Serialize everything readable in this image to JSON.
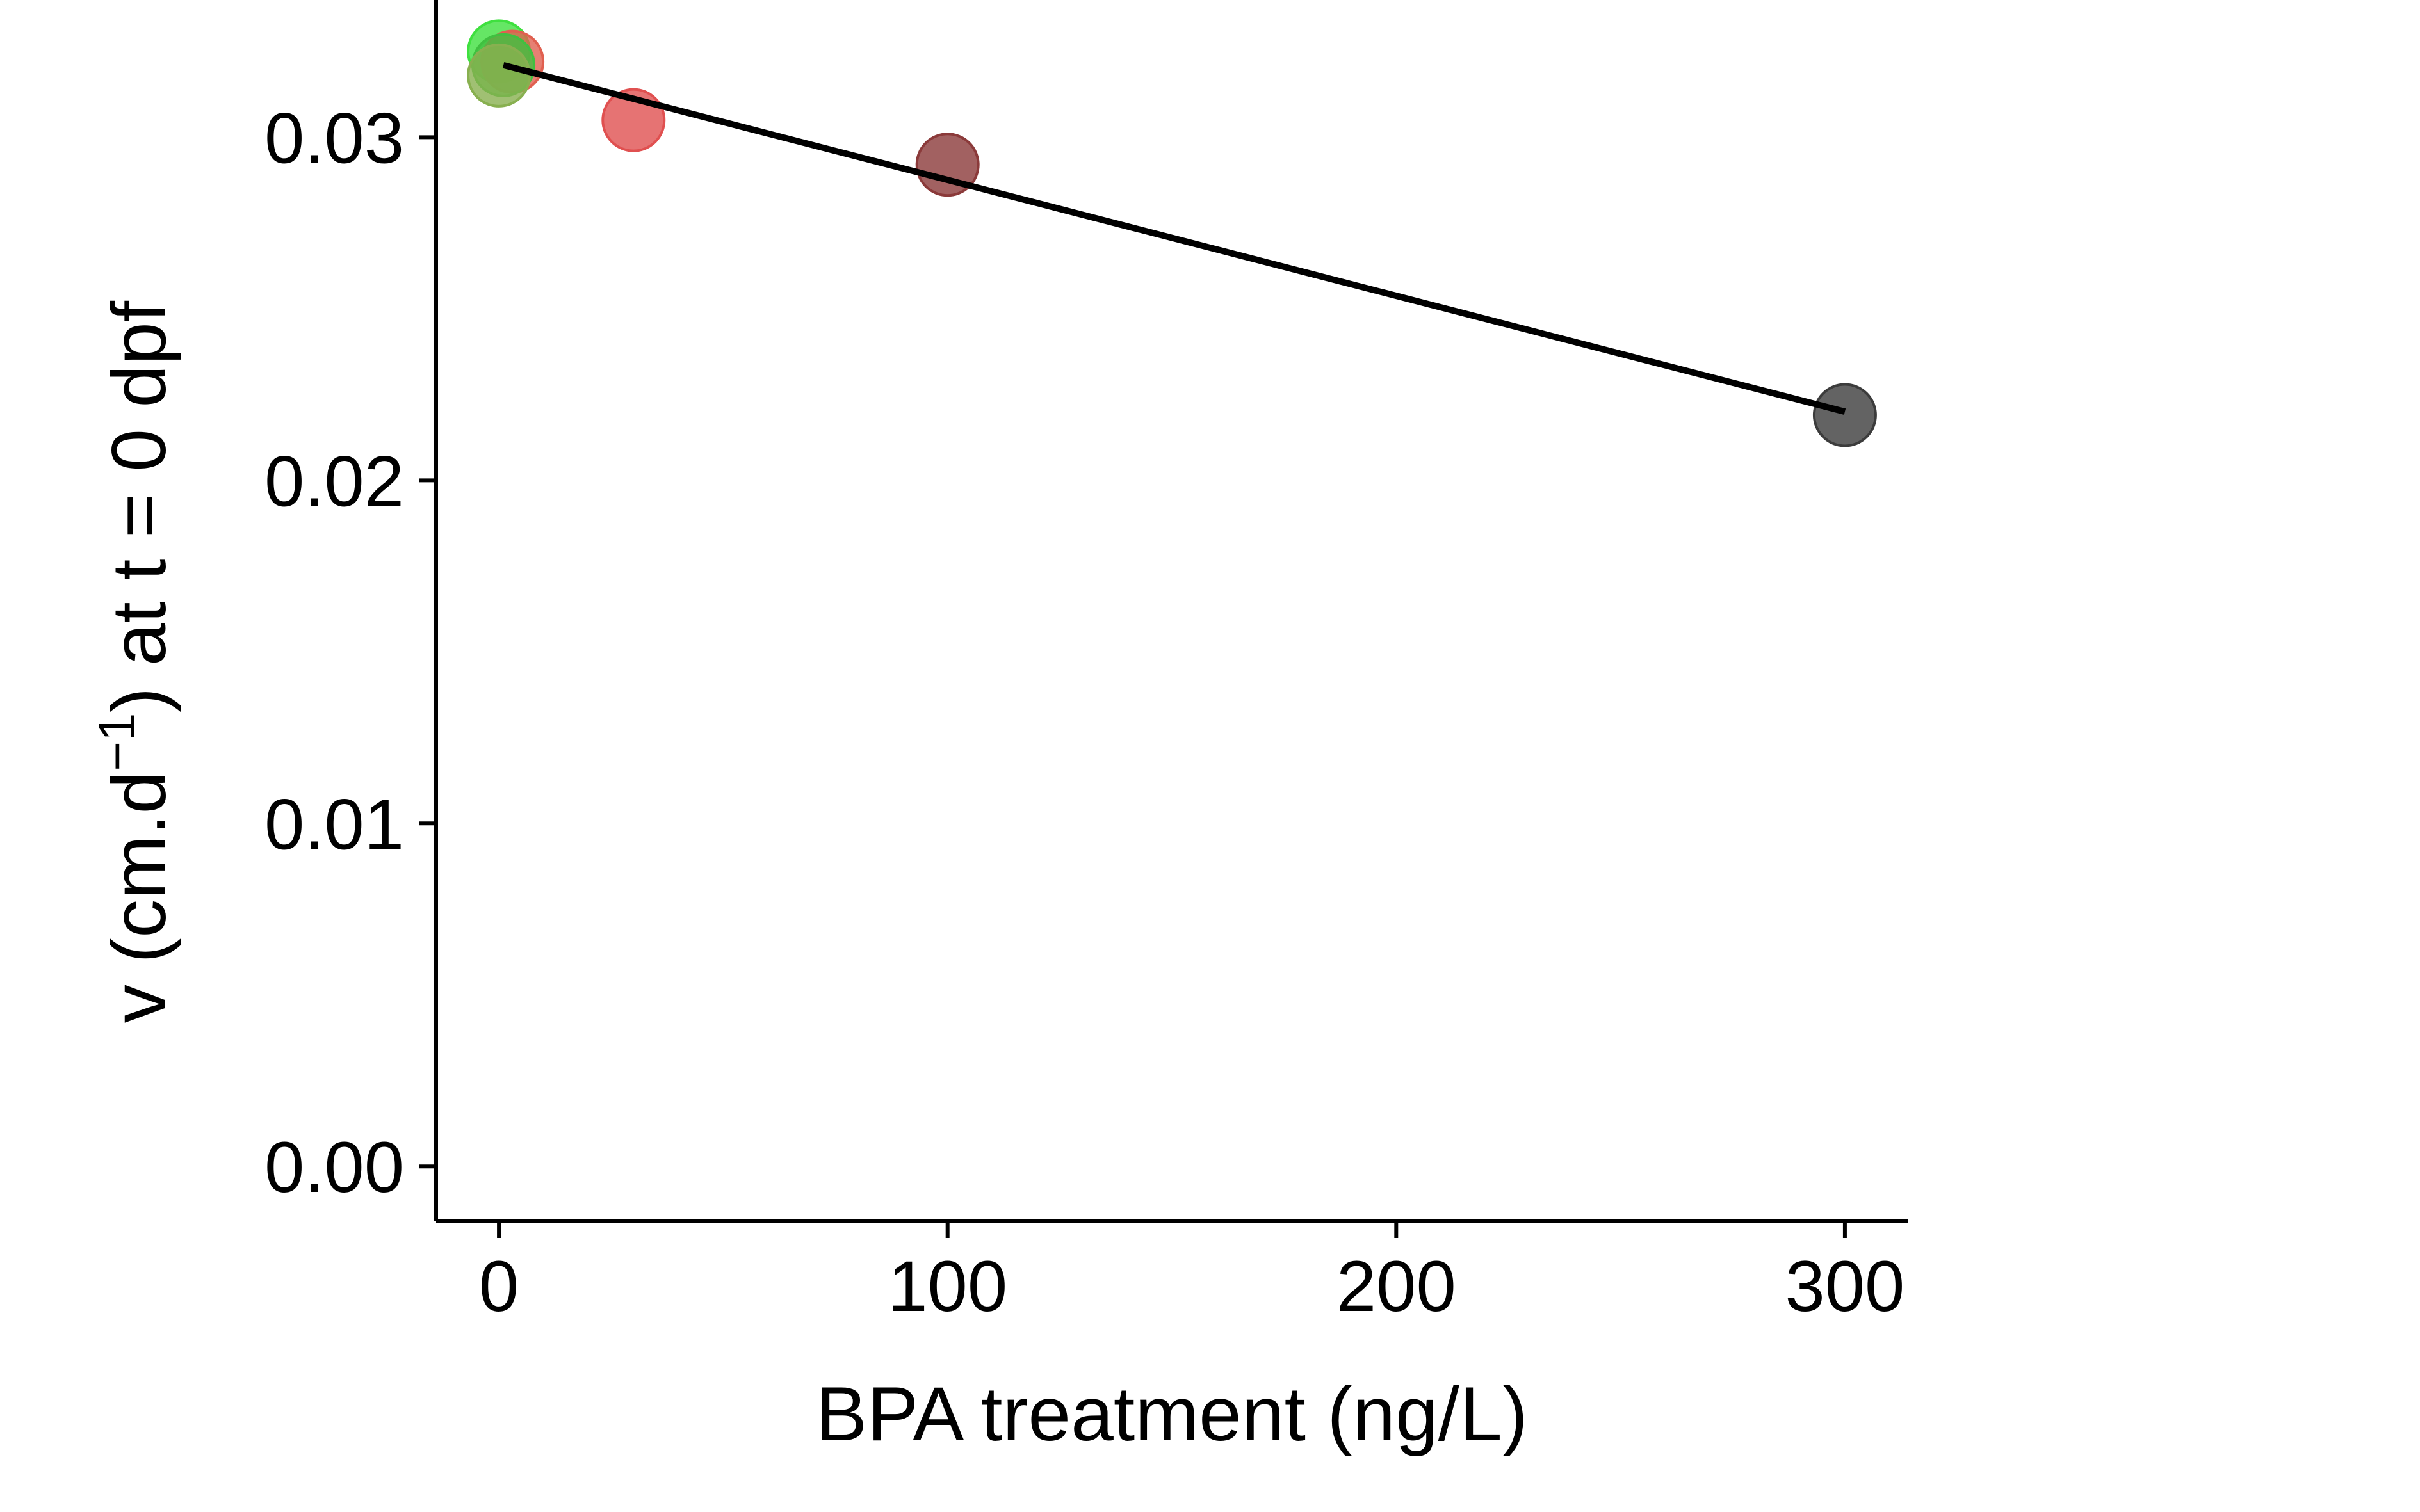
{
  "chart_data": {
    "type": "scatter",
    "title": "",
    "xlabel": "BPA treatment (ng/L)",
    "ylabel": {
      "prefix": "v (cm.d",
      "superscript": "−1",
      "suffix": ") at t = 0 dpf"
    },
    "xlim": [
      -14,
      314
    ],
    "ylim": [
      -0.0016,
      0.034
    ],
    "xticks": [
      0,
      100,
      200,
      300
    ],
    "xtick_labels": [
      "0",
      "100",
      "200",
      "300"
    ],
    "yticks": [
      0.0,
      0.01,
      0.02,
      0.03
    ],
    "ytick_labels": [
      "0.00",
      "0.01",
      "0.02",
      "0.03"
    ],
    "grid": false,
    "legend": "none",
    "points": [
      {
        "x": 0,
        "y": 0.0325,
        "color": "#3fe03f"
      },
      {
        "x": 3,
        "y": 0.0322,
        "color": "#e06050"
      },
      {
        "x": 1,
        "y": 0.0321,
        "color": "#40c040"
      },
      {
        "x": 0,
        "y": 0.0318,
        "color": "#88b050"
      },
      {
        "x": 30,
        "y": 0.0305,
        "color": "#e05050"
      },
      {
        "x": 100,
        "y": 0.0292,
        "color": "#8b3a3a"
      },
      {
        "x": 300,
        "y": 0.0219,
        "color": "#3c3c3c"
      }
    ],
    "regression": {
      "x": [
        1,
        300
      ],
      "y": [
        0.0321,
        0.022
      ],
      "color": "#000000"
    }
  }
}
